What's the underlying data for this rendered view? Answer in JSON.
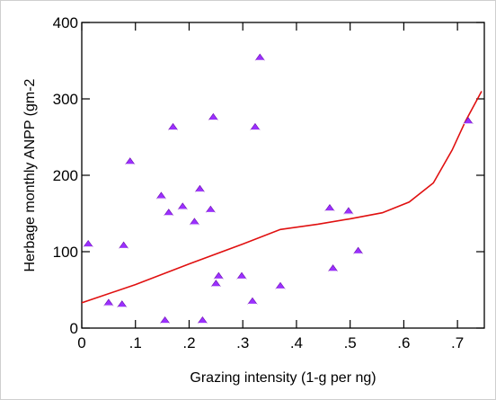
{
  "chart_data": {
    "type": "scatter",
    "xlabel": "Grazing intensity (1-g per ng)",
    "ylabel": "Herbage monthly ANPP (gm-2",
    "xlim": [
      0,
      0.75
    ],
    "ylim": [
      0,
      400
    ],
    "x_ticks": [
      {
        "value": 0,
        "label": "0"
      },
      {
        "value": 0.1,
        "label": ".1"
      },
      {
        "value": 0.2,
        "label": ".2"
      },
      {
        "value": 0.3,
        "label": ".3"
      },
      {
        "value": 0.4,
        "label": ".4"
      },
      {
        "value": 0.5,
        "label": ".5"
      },
      {
        "value": 0.6,
        "label": ".6"
      },
      {
        "value": 0.7,
        "label": ".7"
      }
    ],
    "y_ticks": [
      {
        "value": 0,
        "label": "0"
      },
      {
        "value": 100,
        "label": "100"
      },
      {
        "value": 200,
        "label": "200"
      },
      {
        "value": 300,
        "label": "300"
      },
      {
        "value": 400,
        "label": "400"
      }
    ],
    "grid": false,
    "series": [
      {
        "kind": "points",
        "marker": "triangle",
        "color": "#9b30ff",
        "points": [
          {
            "x": 0.012,
            "y": 110
          },
          {
            "x": 0.05,
            "y": 33
          },
          {
            "x": 0.075,
            "y": 31
          },
          {
            "x": 0.078,
            "y": 108
          },
          {
            "x": 0.09,
            "y": 218
          },
          {
            "x": 0.148,
            "y": 173
          },
          {
            "x": 0.155,
            "y": 10
          },
          {
            "x": 0.162,
            "y": 151
          },
          {
            "x": 0.17,
            "y": 263
          },
          {
            "x": 0.188,
            "y": 159
          },
          {
            "x": 0.21,
            "y": 139
          },
          {
            "x": 0.22,
            "y": 182
          },
          {
            "x": 0.225,
            "y": 10
          },
          {
            "x": 0.24,
            "y": 155
          },
          {
            "x": 0.245,
            "y": 276
          },
          {
            "x": 0.25,
            "y": 58
          },
          {
            "x": 0.255,
            "y": 68
          },
          {
            "x": 0.298,
            "y": 68
          },
          {
            "x": 0.318,
            "y": 35
          },
          {
            "x": 0.323,
            "y": 263
          },
          {
            "x": 0.332,
            "y": 354
          },
          {
            "x": 0.37,
            "y": 55
          },
          {
            "x": 0.462,
            "y": 157
          },
          {
            "x": 0.468,
            "y": 78
          },
          {
            "x": 0.497,
            "y": 153
          },
          {
            "x": 0.515,
            "y": 101
          },
          {
            "x": 0.72,
            "y": 271
          }
        ]
      },
      {
        "kind": "line",
        "color": "#e01010",
        "points": [
          {
            "x": 0.0,
            "y": 33
          },
          {
            "x": 0.1,
            "y": 57
          },
          {
            "x": 0.2,
            "y": 84
          },
          {
            "x": 0.3,
            "y": 110
          },
          {
            "x": 0.37,
            "y": 129
          },
          {
            "x": 0.44,
            "y": 136
          },
          {
            "x": 0.5,
            "y": 143
          },
          {
            "x": 0.56,
            "y": 151
          },
          {
            "x": 0.61,
            "y": 165
          },
          {
            "x": 0.655,
            "y": 190
          },
          {
            "x": 0.69,
            "y": 233
          },
          {
            "x": 0.715,
            "y": 271
          },
          {
            "x": 0.745,
            "y": 310
          }
        ]
      }
    ]
  }
}
